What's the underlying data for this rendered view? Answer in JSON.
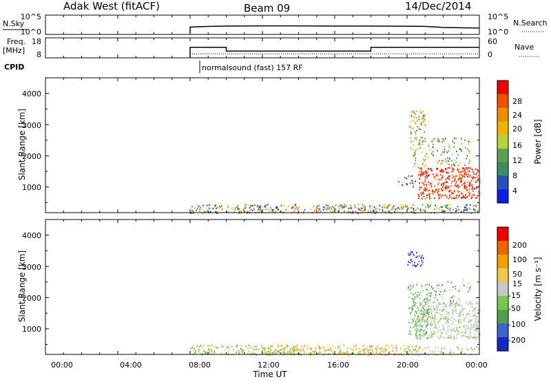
{
  "header": {
    "station": "Adak West (fitACF)",
    "beam": "Beam 09",
    "date": "14/Dec/2014"
  },
  "labels": {
    "nsky": "N.Sky",
    "freq": "Freq.",
    "mhz": "[MHz]",
    "cpid": "CPID",
    "nsearch": "N.Search",
    "nave": "Nave",
    "cpid_text": "normalsound (fast) 157 RF",
    "time_label": "Time UT",
    "slant_range": "Slant Range [km]",
    "power_label": "Power [dB]",
    "velocity_label": "Velocity [m s⁻¹]"
  },
  "ticks": {
    "sky_left": [
      "10^5",
      "10^0"
    ],
    "sky_right": [
      "10^5",
      "10^0"
    ],
    "freq_left": [
      "18",
      "8"
    ],
    "freq_right": [
      "60",
      "0"
    ],
    "range": [
      "4000",
      "3000",
      "2000",
      "1000"
    ],
    "time": [
      "00:00",
      "04:00",
      "08:00",
      "12:00",
      "16:00",
      "20:00",
      "00:00"
    ],
    "power": [
      "28",
      "24",
      "20",
      "16",
      "12",
      "8",
      "4"
    ],
    "velocity": [
      "200",
      "100",
      "50",
      "15",
      "-15",
      "-50",
      "-100",
      "-200"
    ]
  },
  "colors": {
    "power_scale": [
      "#0a1ee6",
      "#2850b4",
      "#3c8c64",
      "#5aa050",
      "#b4d23c",
      "#f0b400",
      "#f08c00",
      "#f05000",
      "#f00000"
    ],
    "velocity_scale": [
      "#1428c8",
      "#3c64c8",
      "#50a050",
      "#78c850",
      "#c8c8c8",
      "#f0c850",
      "#f0a000",
      "#f06400",
      "#f00000"
    ]
  },
  "chart_data": [
    {
      "type": "line",
      "title": "N.Sky / N.Search",
      "x_range_hours": [
        0,
        24
      ],
      "series": [
        {
          "name": "N.Sky",
          "x": [
            8.0,
            8.0,
            9,
            10,
            12,
            14,
            16,
            18,
            20,
            21,
            22,
            23,
            24
          ],
          "y_log10": [
            0,
            1.8,
            2.0,
            2.1,
            2.15,
            2.15,
            2.1,
            2.1,
            2.05,
            2.0,
            1.7,
            1.6,
            1.5
          ]
        }
      ]
    },
    {
      "type": "line",
      "title": "Freq. [MHz] / Nave",
      "x_range_hours": [
        0,
        24
      ],
      "yrange_freq_mhz": [
        8,
        18
      ],
      "yrange_nave": [
        0,
        60
      ],
      "series": [
        {
          "name": "Freq.",
          "x": [
            8.0,
            8.0,
            10.0,
            10.0,
            18.0,
            18.0,
            24.0
          ],
          "y": [
            8,
            14.5,
            14.5,
            12.0,
            12.0,
            14.5,
            14.5
          ]
        },
        {
          "name": "Nave",
          "x": [
            8.0,
            24.0
          ],
          "y": [
            13,
            13
          ]
        }
      ]
    },
    {
      "type": "heatmap",
      "title": "Power",
      "xlabel": "Time UT",
      "ylabel": "Slant Range [km]",
      "colorbar_label": "Power [dB]",
      "x_range_hours": [
        0,
        24
      ],
      "ylim_km": [
        180,
        4500
      ],
      "clim_db": [
        0,
        32
      ],
      "regions": [
        {
          "t": [
            8.0,
            24.0
          ],
          "range_km": [
            180,
            500
          ],
          "power_db": "2-20 mixed"
        },
        {
          "t": [
            20.2,
            24.0
          ],
          "range_km": [
            600,
            2000
          ],
          "power_db": "24-32"
        },
        {
          "t": [
            20.0,
            21.0
          ],
          "range_km": [
            1800,
            3500
          ],
          "power_db": "8-20"
        },
        {
          "t": [
            21.0,
            24.0
          ],
          "range_km": [
            1800,
            2600
          ],
          "power_db": "10-20"
        }
      ]
    },
    {
      "type": "heatmap",
      "title": "Velocity",
      "xlabel": "Time UT",
      "ylabel": "Slant Range [km]",
      "colorbar_label": "Velocity [m s⁻¹]",
      "x_range_hours": [
        0,
        24
      ],
      "ylim_km": [
        180,
        4500
      ],
      "clim_ms": [
        -250,
        250
      ],
      "regions": [
        {
          "t": [
            8.0,
            14.0
          ],
          "range_km": [
            180,
            500
          ],
          "velocity_ms": "15 to 100"
        },
        {
          "t": [
            12.0,
            20.0
          ],
          "range_km": [
            180,
            500
          ],
          "velocity_ms": "-15 to -100"
        },
        {
          "t": [
            20.0,
            21.0
          ],
          "range_km": [
            3000,
            3500
          ],
          "velocity_ms": "100 to 250"
        },
        {
          "t": [
            20.5,
            24.0
          ],
          "range_km": [
            700,
            2000
          ],
          "velocity_ms": "-15 to 15"
        },
        {
          "t": [
            20.0,
            21.0
          ],
          "range_km": [
            700,
            2500
          ],
          "velocity_ms": "15 to 100"
        }
      ]
    }
  ]
}
